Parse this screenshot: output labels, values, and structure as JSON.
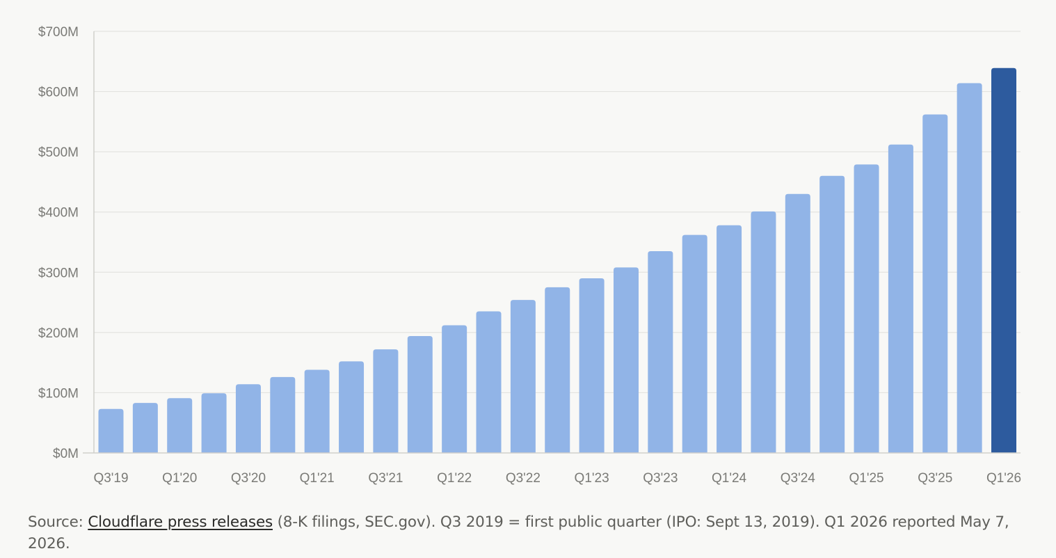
{
  "chart_data": {
    "type": "bar",
    "categories": [
      "Q3'19",
      "Q4'19",
      "Q1'20",
      "Q2'20",
      "Q3'20",
      "Q4'20",
      "Q1'21",
      "Q2'21",
      "Q3'21",
      "Q4'21",
      "Q1'22",
      "Q2'22",
      "Q3'22",
      "Q4'22",
      "Q1'23",
      "Q2'23",
      "Q3'23",
      "Q4'23",
      "Q1'24",
      "Q2'24",
      "Q3'24",
      "Q4'24",
      "Q1'25",
      "Q2'25",
      "Q3'25",
      "Q4'25",
      "Q1'26"
    ],
    "x_tick_labels": [
      "Q3'19",
      "",
      "Q1'20",
      "",
      "Q3'20",
      "",
      "Q1'21",
      "",
      "Q3'21",
      "",
      "Q1'22",
      "",
      "Q3'22",
      "",
      "Q1'23",
      "",
      "Q3'23",
      "",
      "Q1'24",
      "",
      "Q3'24",
      "",
      "Q1'25",
      "",
      "Q3'25",
      "",
      "Q1'26"
    ],
    "values": [
      73,
      83,
      91,
      99,
      114,
      126,
      138,
      152,
      172,
      194,
      212,
      235,
      254,
      275,
      290,
      308,
      335,
      362,
      378,
      401,
      430,
      460,
      479,
      512,
      562,
      614,
      639
    ],
    "highlight_index": 26,
    "ylim": [
      0,
      700
    ],
    "y_ticks": [
      0,
      100,
      200,
      300,
      400,
      500,
      600,
      700
    ],
    "y_tick_labels": [
      "$0M",
      "$100M",
      "$200M",
      "$300M",
      "$400M",
      "$500M",
      "$600M",
      "$700M"
    ],
    "grid": true,
    "colors": {
      "bar": "#91b4e7",
      "highlight": "#2d5b9e",
      "grid": "#e3e3e0",
      "axis": "#cfcfcb",
      "tick_text": "#7a7a76"
    }
  },
  "footer": {
    "source_prefix": "Source: ",
    "source_link": "Cloudflare press releases",
    "source_suffix": " (8-K filings, SEC.gov). Q3 2019 = first public quarter (IPO: Sept 13, 2019). Q1 2026 reported May 7, 2026."
  }
}
